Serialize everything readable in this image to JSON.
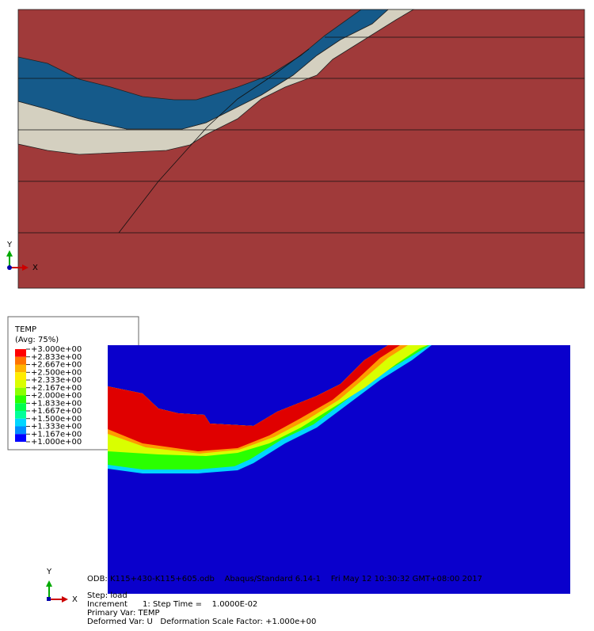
{
  "top_view": {
    "triad": {
      "y": "Y",
      "x": "X"
    }
  },
  "legend": {
    "title": "TEMP",
    "subtitle": "(Avg: 75%)",
    "labels": [
      "+3.000e+00",
      "+2.833e+00",
      "+2.667e+00",
      "+2.500e+00",
      "+2.333e+00",
      "+2.167e+00",
      "+2.000e+00",
      "+1.833e+00",
      "+1.667e+00",
      "+1.500e+00",
      "+1.333e+00",
      "+1.167e+00",
      "+1.000e+00"
    ],
    "colors": [
      "#ff0000",
      "#ff7300",
      "#ffb300",
      "#ffec00",
      "#d9ff00",
      "#8cff00",
      "#2aff00",
      "#00ff4d",
      "#00ff9a",
      "#00d6ff",
      "#008bff",
      "#0000ff"
    ]
  },
  "bottom_view": {
    "triad": {
      "y": "Y",
      "x": "X"
    },
    "info": [
      "ODB: K115+430-K115+605.odb    Abaqus/Standard 6.14-1    Fri May 12 10:30:32 GMT+08:00 2017",
      "Step: load",
      "Increment      1: Step Time =    1.0000E-02",
      "Primary Var: TEMP",
      "Deformed Var: U   Deformation Scale Factor: +1.000e+00"
    ]
  }
}
